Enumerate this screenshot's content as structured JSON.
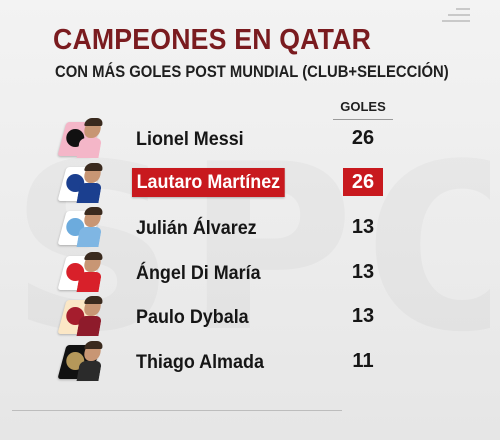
{
  "header": {
    "title": "CAMPEONES EN QATAR",
    "subtitle": "CON MÁS GOLES POST MUNDIAL (CLUB+SELECCIÓN)",
    "goals_column_label": "GOLES"
  },
  "watermark_text": "SPORT",
  "colors": {
    "title": "#7a1b1f",
    "highlight": "#c8191e"
  },
  "rows": [
    {
      "name": "Lionel Messi",
      "goals": "26",
      "highlighted": false,
      "club_icon": "inter-miami-crest-icon",
      "crest_color": "#f4b6c8",
      "crest_inner": "#111111",
      "shirt": "#f4b6c8"
    },
    {
      "name": "Lautaro Martínez",
      "goals": "26",
      "highlighted": true,
      "club_icon": "inter-milan-crest-icon",
      "crest_color": "#ffffff",
      "crest_inner": "#1b3f8f",
      "shirt": "#1b3f8f"
    },
    {
      "name": "Julián Álvarez",
      "goals": "13",
      "highlighted": false,
      "club_icon": "manchester-city-crest-icon",
      "crest_color": "#ffffff",
      "crest_inner": "#6cabdd",
      "shirt": "#7fb6e3"
    },
    {
      "name": "Ángel Di María",
      "goals": "13",
      "highlighted": false,
      "club_icon": "benfica-crest-icon",
      "crest_color": "#ffffff",
      "crest_inner": "#d8202a",
      "shirt": "#d8202a"
    },
    {
      "name": "Paulo Dybala",
      "goals": "13",
      "highlighted": false,
      "club_icon": "as-roma-crest-icon",
      "crest_color": "#fbe7c6",
      "crest_inner": "#a51d2d",
      "shirt": "#8e1b2b"
    },
    {
      "name": "Thiago Almada",
      "goals": "11",
      "highlighted": false,
      "club_icon": "atlanta-united-crest-icon",
      "crest_color": "#111111",
      "crest_inner": "#b5985a",
      "shirt": "#2b2b2b"
    }
  ]
}
